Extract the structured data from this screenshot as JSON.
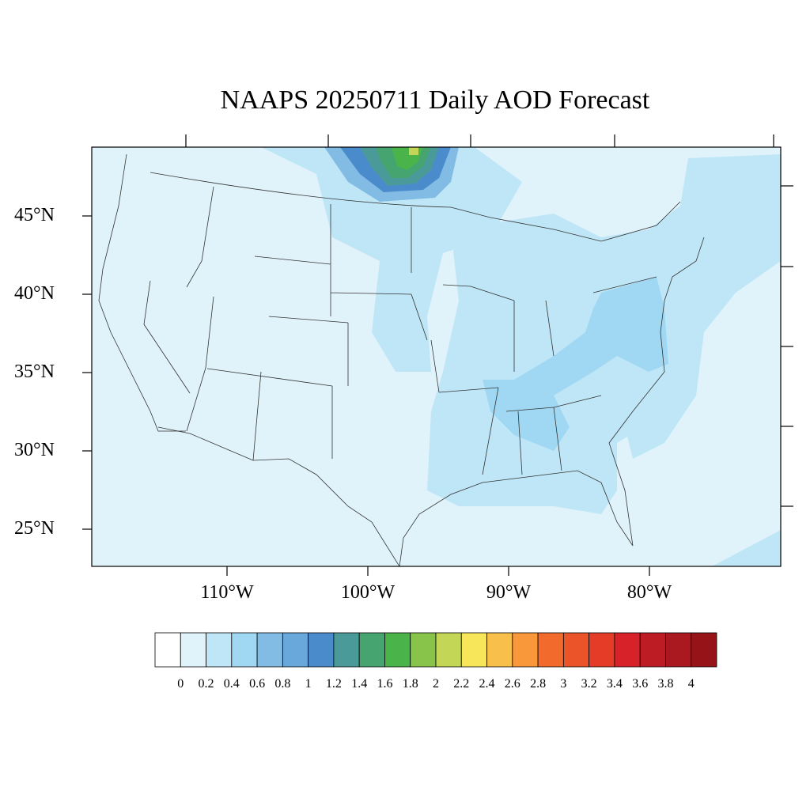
{
  "title": "NAAPS 20250711 Daily AOD Forecast",
  "map": {
    "lon_range": [
      -119,
      -70
    ],
    "lat_range": [
      22.8,
      49.6
    ],
    "lat_labels": [
      "45°N",
      "40°N",
      "35°N",
      "30°N",
      "25°N"
    ],
    "lon_labels": [
      "110°W",
      "100°W",
      "90°W",
      "80°W"
    ],
    "ocean_color": "#e0f3fb",
    "land_color": "#e0f3fb",
    "border_color": "#333333"
  },
  "colorbar": {
    "labels": [
      "0",
      "0.2",
      "0.4",
      "0.6",
      "0.8",
      "1",
      "1.2",
      "1.4",
      "1.6",
      "1.8",
      "2",
      "2.2",
      "2.4",
      "2.6",
      "2.8",
      "3",
      "3.2",
      "3.4",
      "3.6",
      "3.8",
      "4"
    ],
    "colors": [
      "#ffffff",
      "#e0f3fb",
      "#bfe6f7",
      "#a0d8f3",
      "#82bce4",
      "#68a8da",
      "#4a8ccb",
      "#4a9a9a",
      "#46a470",
      "#4ab44a",
      "#88c34a",
      "#c4d655",
      "#f8e65a",
      "#f8c04a",
      "#f8983a",
      "#f26a2c",
      "#ea5428",
      "#e43c26",
      "#d8222a",
      "#be1c24",
      "#aa1820",
      "#961418"
    ]
  },
  "aod_plumes": [
    {
      "region": "canadian-smoke-core",
      "value": 1.8
    },
    {
      "region": "northern-plains",
      "value": 0.4
    },
    {
      "region": "appalachia",
      "value": 0.6
    },
    {
      "region": "atlantic-coast",
      "value": 0.4
    },
    {
      "region": "gulf-coast",
      "value": 0.4
    }
  ]
}
